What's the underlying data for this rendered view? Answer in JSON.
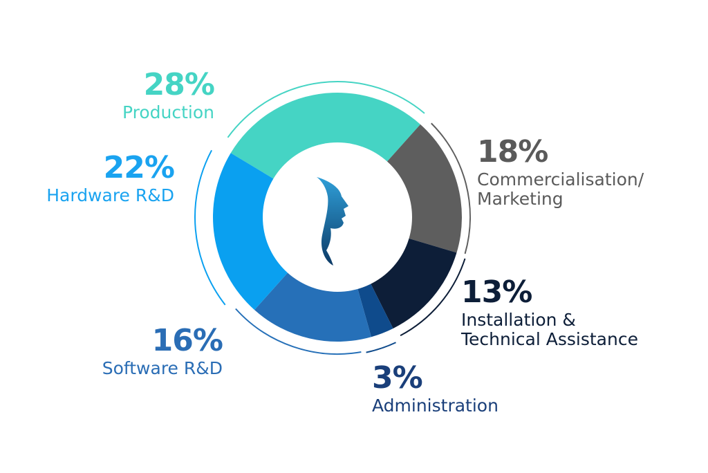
{
  "chart_data": {
    "type": "donut",
    "categories": [
      "Production",
      "Commercialisation/\nMarketing",
      "Installation &\nTechnical Assistance",
      "Administration",
      "Software R&D",
      "Hardware R&D"
    ],
    "values": [
      28,
      18,
      13,
      3,
      16,
      22
    ],
    "value_labels": [
      "28%",
      "18%",
      "13%",
      "3%",
      "16%",
      "22%"
    ],
    "colors": [
      "#45d4c4",
      "#5e5e5e",
      "#0d1e38",
      "#0f4b8c",
      "#2670b8",
      "#0aa0f0"
    ]
  }
}
